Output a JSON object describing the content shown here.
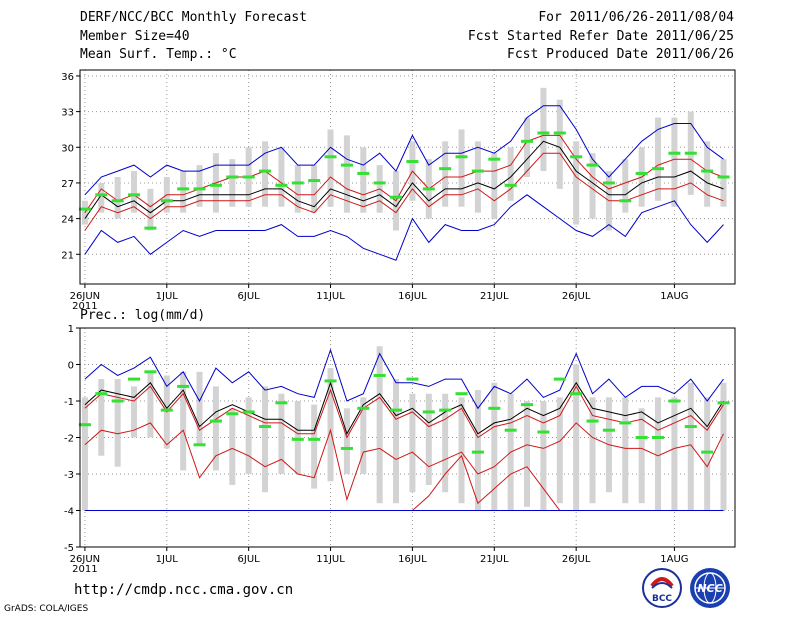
{
  "header": {
    "title": "DERF/NCC/BCC Monthly Forecast",
    "member_size": "Member Size=40",
    "variable_temp": "Mean Surf. Temp.: °C",
    "period": "For 2011/06/26-2011/08/04",
    "fcst_started": "Fcst Started Refer Date 2011/06/25",
    "fcst_produced": "Fcst Produced Date 2011/06/26"
  },
  "footer": {
    "url": "http://cmdp.ncc.cma.gov.cn",
    "credit": "GrADS: COLA/IGES",
    "logo_bcc": "BCC",
    "logo_ncc": "NCC"
  },
  "colors": {
    "box": "#d3d3d3",
    "obs": "#33e033",
    "mean": "#000000",
    "inner": "#d01818",
    "outer": "#0000cc",
    "grid": "#999999"
  },
  "chart_data": [
    {
      "type": "line",
      "title": "Mean Surf. Temp.: °C",
      "xlabel": "",
      "ylabel": "°C",
      "days": 40,
      "xlim": [
        0.7,
        40.7
      ],
      "ylim": [
        18.5,
        36.5
      ],
      "yticks": [
        21,
        24,
        27,
        30,
        33,
        36
      ],
      "xticks": [
        {
          "day": 1,
          "label": "26JUN",
          "sub": "2011"
        },
        {
          "day": 6,
          "label": "1JUL"
        },
        {
          "day": 11,
          "label": "6JUL"
        },
        {
          "day": 16,
          "label": "11JUL"
        },
        {
          "day": 21,
          "label": "16JUL"
        },
        {
          "day": 26,
          "label": "21JUL"
        },
        {
          "day": 31,
          "label": "26JUL"
        },
        {
          "day": 37,
          "label": "1AUG"
        }
      ],
      "box_low": [
        23.5,
        24.5,
        24.0,
        24.5,
        23.0,
        24.5,
        24.5,
        25.0,
        24.5,
        25.0,
        25.0,
        25.0,
        25.0,
        24.5,
        24.5,
        25.0,
        24.5,
        24.5,
        24.5,
        23.0,
        25.5,
        24.0,
        25.0,
        25.0,
        24.5,
        24.0,
        25.5,
        27.5,
        28.0,
        26.5,
        23.5,
        24.0,
        23.0,
        24.5,
        25.0,
        25.5,
        25.0,
        26.0,
        25.0,
        25.0
      ],
      "box_high": [
        25.5,
        27.0,
        27.5,
        28.0,
        26.5,
        27.5,
        28.0,
        28.5,
        29.5,
        29.0,
        30.0,
        30.5,
        30.0,
        28.5,
        28.5,
        31.5,
        31.0,
        30.0,
        28.5,
        28.0,
        30.5,
        29.0,
        30.5,
        31.5,
        30.5,
        29.5,
        30.0,
        32.5,
        35.0,
        34.0,
        30.5,
        29.5,
        28.0,
        29.0,
        30.0,
        32.5,
        32.5,
        33.0,
        30.5,
        29.0
      ],
      "series": [
        {
          "name": "outer_max",
          "color": "#0000cc",
          "values": [
            26.0,
            27.5,
            28.0,
            28.5,
            27.5,
            28.5,
            28.0,
            28.0,
            28.5,
            28.5,
            28.5,
            29.5,
            30.0,
            28.5,
            28.5,
            30.0,
            29.0,
            28.5,
            29.5,
            28.0,
            31.0,
            28.5,
            29.5,
            29.5,
            30.0,
            29.5,
            30.5,
            32.5,
            33.5,
            33.5,
            31.5,
            29.0,
            27.5,
            29.0,
            30.5,
            31.5,
            32.0,
            32.0,
            30.0,
            29.0
          ]
        },
        {
          "name": "inner_max",
          "color": "#d01818",
          "values": [
            24.5,
            26.5,
            25.5,
            26.0,
            25.0,
            26.0,
            26.0,
            26.5,
            27.0,
            27.5,
            27.5,
            28.0,
            27.0,
            26.0,
            26.0,
            27.5,
            26.5,
            26.0,
            26.5,
            25.5,
            28.0,
            26.5,
            27.5,
            27.5,
            28.0,
            28.0,
            28.5,
            30.5,
            31.0,
            31.0,
            29.0,
            27.5,
            26.5,
            27.0,
            27.5,
            28.5,
            29.0,
            29.0,
            28.0,
            27.5
          ]
        },
        {
          "name": "mean",
          "color": "#000000",
          "values": [
            24.0,
            26.0,
            25.0,
            25.5,
            24.5,
            25.5,
            25.5,
            26.0,
            26.0,
            26.0,
            26.0,
            26.5,
            26.5,
            25.5,
            25.0,
            26.5,
            26.0,
            25.5,
            26.0,
            25.0,
            27.0,
            25.5,
            26.5,
            26.5,
            27.0,
            26.5,
            27.5,
            29.0,
            30.5,
            30.0,
            28.0,
            27.0,
            26.0,
            26.0,
            27.0,
            27.5,
            27.5,
            28.0,
            27.0,
            26.5
          ]
        },
        {
          "name": "inner_min",
          "color": "#d01818",
          "values": [
            23.0,
            25.0,
            24.5,
            25.0,
            24.0,
            25.0,
            25.0,
            25.5,
            25.5,
            25.5,
            25.5,
            26.0,
            26.0,
            25.0,
            24.5,
            26.0,
            25.5,
            25.0,
            25.5,
            24.5,
            26.5,
            25.0,
            26.0,
            26.0,
            26.5,
            25.5,
            26.5,
            28.0,
            29.5,
            29.5,
            27.5,
            26.5,
            25.5,
            25.5,
            26.0,
            26.5,
            26.5,
            27.0,
            26.0,
            25.5
          ]
        },
        {
          "name": "outer_min",
          "color": "#0000cc",
          "values": [
            21.0,
            23.0,
            22.0,
            22.5,
            21.0,
            22.0,
            23.0,
            22.5,
            23.0,
            23.0,
            23.0,
            23.0,
            23.5,
            22.5,
            22.5,
            23.0,
            22.5,
            21.5,
            21.0,
            20.5,
            24.0,
            22.0,
            23.5,
            23.0,
            23.0,
            23.5,
            25.0,
            26.0,
            25.0,
            24.0,
            23.0,
            22.5,
            23.5,
            22.5,
            24.5,
            25.0,
            25.5,
            23.5,
            22.0,
            23.5
          ]
        }
      ],
      "obs": [
        24.8,
        26.0,
        25.5,
        26.0,
        23.2,
        25.5,
        26.5,
        26.5,
        26.8,
        27.5,
        27.5,
        28.0,
        26.8,
        27.0,
        27.2,
        29.2,
        28.5,
        27.8,
        27.0,
        25.8,
        28.8,
        26.5,
        28.2,
        29.2,
        28.0,
        29.0,
        26.8,
        30.5,
        31.2,
        31.2,
        29.2,
        28.5,
        27.0,
        25.5,
        27.8,
        28.2,
        29.5,
        29.5,
        28.0,
        27.5
      ]
    },
    {
      "type": "line",
      "title": "Prec.: log(mm/d)",
      "xlabel": "",
      "ylabel": "log(mm/d)",
      "days": 40,
      "xlim": [
        0.7,
        40.7
      ],
      "ylim": [
        -5,
        1
      ],
      "yticks": [
        -5,
        -4,
        -3,
        -2,
        -1,
        0,
        1
      ],
      "xticks": [
        {
          "day": 1,
          "label": "26JUN",
          "sub": "2011"
        },
        {
          "day": 6,
          "label": "1JUL"
        },
        {
          "day": 11,
          "label": "6JUL"
        },
        {
          "day": 16,
          "label": "11JUL"
        },
        {
          "day": 21,
          "label": "16JUL"
        },
        {
          "day": 26,
          "label": "21JUL"
        },
        {
          "day": 31,
          "label": "26JUL"
        },
        {
          "day": 37,
          "label": "1AUG"
        }
      ],
      "box_low": [
        -4.0,
        -2.5,
        -2.8,
        -2.0,
        -2.0,
        -2.3,
        -2.9,
        -2.2,
        -2.9,
        -3.3,
        -3.0,
        -3.5,
        -3.0,
        -3.0,
        -3.4,
        -3.2,
        -3.0,
        -3.0,
        -3.8,
        -3.8,
        -3.5,
        -3.3,
        -3.5,
        -3.8,
        -4.0,
        -4.0,
        -4.0,
        -3.9,
        -4.0,
        -3.8,
        -4.0,
        -3.8,
        -3.5,
        -3.8,
        -3.8,
        -4.0,
        -4.0,
        -4.0,
        -4.0,
        -4.0
      ],
      "box_high": [
        -0.9,
        -0.4,
        -0.4,
        -0.6,
        -0.2,
        -0.3,
        -0.2,
        -0.2,
        -0.6,
        -1.2,
        -0.9,
        -0.6,
        -0.8,
        -1.0,
        -1.1,
        -0.1,
        -1.2,
        -0.9,
        0.5,
        -0.4,
        -0.8,
        -0.8,
        -0.8,
        -0.9,
        -0.7,
        -0.5,
        -0.8,
        -1.0,
        -1.0,
        -0.9,
        0.0,
        -0.9,
        -0.9,
        -0.9,
        -1.2,
        -0.9,
        -0.9,
        -0.5,
        -0.9,
        -0.5
      ],
      "series": [
        {
          "name": "outer_max",
          "color": "#0000cc",
          "values": [
            -0.4,
            0.0,
            -0.3,
            -0.1,
            0.2,
            -0.6,
            -0.2,
            -1.0,
            -0.1,
            -0.5,
            -0.2,
            -0.7,
            -0.6,
            -0.8,
            -0.9,
            0.4,
            -1.0,
            -0.8,
            0.3,
            -0.5,
            -0.5,
            -0.6,
            -0.4,
            -0.4,
            -1.2,
            -0.6,
            -0.8,
            -0.4,
            -0.9,
            -0.7,
            0.3,
            -0.8,
            -0.4,
            -0.9,
            -0.6,
            -0.6,
            -0.8,
            -0.4,
            -1.0,
            -0.4
          ]
        },
        {
          "name": "inner_max",
          "color": "#d01818",
          "values": [
            -1.2,
            -0.8,
            -0.9,
            -1.0,
            -0.6,
            -1.3,
            -0.8,
            -1.8,
            -1.5,
            -1.2,
            -1.4,
            -1.6,
            -1.6,
            -1.9,
            -1.9,
            -0.7,
            -2.0,
            -1.2,
            -0.9,
            -1.5,
            -1.3,
            -1.7,
            -1.5,
            -1.2,
            -2.0,
            -1.7,
            -1.6,
            -1.4,
            -1.6,
            -1.4,
            -0.6,
            -1.4,
            -1.5,
            -1.6,
            -1.5,
            -1.8,
            -1.6,
            -1.4,
            -1.8,
            -1.1
          ]
        },
        {
          "name": "mean",
          "color": "#000000",
          "values": [
            -1.1,
            -0.7,
            -0.8,
            -0.9,
            -0.5,
            -1.2,
            -0.7,
            -1.7,
            -1.3,
            -1.1,
            -1.3,
            -1.5,
            -1.5,
            -1.8,
            -1.8,
            -0.5,
            -1.9,
            -1.1,
            -0.8,
            -1.4,
            -1.2,
            -1.6,
            -1.3,
            -1.1,
            -1.9,
            -1.6,
            -1.5,
            -1.2,
            -1.4,
            -1.2,
            -0.5,
            -1.2,
            -1.3,
            -1.4,
            -1.3,
            -1.6,
            -1.4,
            -1.2,
            -1.7,
            -1.0
          ]
        },
        {
          "name": "inner_min",
          "color": "#d01818",
          "values": [
            -2.2,
            -1.8,
            -1.9,
            -1.8,
            -1.6,
            -2.2,
            -1.8,
            -3.1,
            -2.5,
            -2.3,
            -2.5,
            -2.8,
            -2.6,
            -3.0,
            -3.1,
            -1.8,
            -3.7,
            -2.4,
            -2.3,
            -2.6,
            -2.4,
            -2.8,
            -2.6,
            -2.4,
            -3.0,
            -2.8,
            -2.4,
            -2.2,
            -2.3,
            -2.1,
            -1.6,
            -2.0,
            -2.2,
            -2.3,
            -2.3,
            -2.5,
            -2.3,
            -2.2,
            -2.8,
            -1.9
          ]
        },
        {
          "name": "outer_min",
          "color": "#d01818",
          "values": [
            -4.0,
            -4.0,
            -4.0,
            -4.0,
            -4.0,
            -4.0,
            -4.0,
            -4.0,
            -4.0,
            -4.0,
            -4.0,
            -4.0,
            -4.0,
            -4.0,
            -4.0,
            -4.0,
            -4.0,
            -4.0,
            -4.0,
            -4.0,
            -4.0,
            -3.6,
            -3.0,
            -2.5,
            -3.8,
            -3.4,
            -3.0,
            -2.8,
            -3.4,
            -4.0,
            -4.0,
            -4.0,
            -4.0,
            -4.0,
            -4.0,
            -4.0,
            -4.0,
            -4.0,
            -4.0,
            -4.0
          ]
        },
        {
          "name": "floor",
          "color": "#0000cc",
          "values": [
            -4.0,
            -4.0,
            -4.0,
            -4.0,
            -4.0,
            -4.0,
            -4.0,
            -4.0,
            -4.0,
            -4.0,
            -4.0,
            -4.0,
            -4.0,
            -4.0,
            -4.0,
            -4.0,
            -4.0,
            -4.0,
            -4.0,
            -4.0,
            -4.0,
            -4.0,
            -4.0,
            -4.0,
            -4.0,
            -4.0,
            -4.0,
            -4.0,
            -4.0,
            -4.0,
            -4.0,
            -4.0,
            -4.0,
            -4.0,
            -4.0,
            -4.0,
            -4.0,
            -4.0,
            -4.0,
            -4.0
          ]
        }
      ],
      "obs": [
        -1.65,
        -0.8,
        -1.0,
        -0.4,
        -0.2,
        -1.25,
        -0.6,
        -2.2,
        -1.55,
        -1.35,
        -1.3,
        -1.7,
        -1.05,
        -2.05,
        -2.05,
        -0.45,
        -2.3,
        -1.2,
        -0.3,
        -1.25,
        -0.4,
        -1.3,
        -1.25,
        -0.8,
        -2.4,
        -1.2,
        -1.8,
        -1.1,
        -1.85,
        -0.4,
        -0.8,
        -1.55,
        -1.8,
        -1.6,
        -2.0,
        -2.0,
        -1.0,
        -1.7,
        -2.4,
        -1.05
      ]
    }
  ]
}
